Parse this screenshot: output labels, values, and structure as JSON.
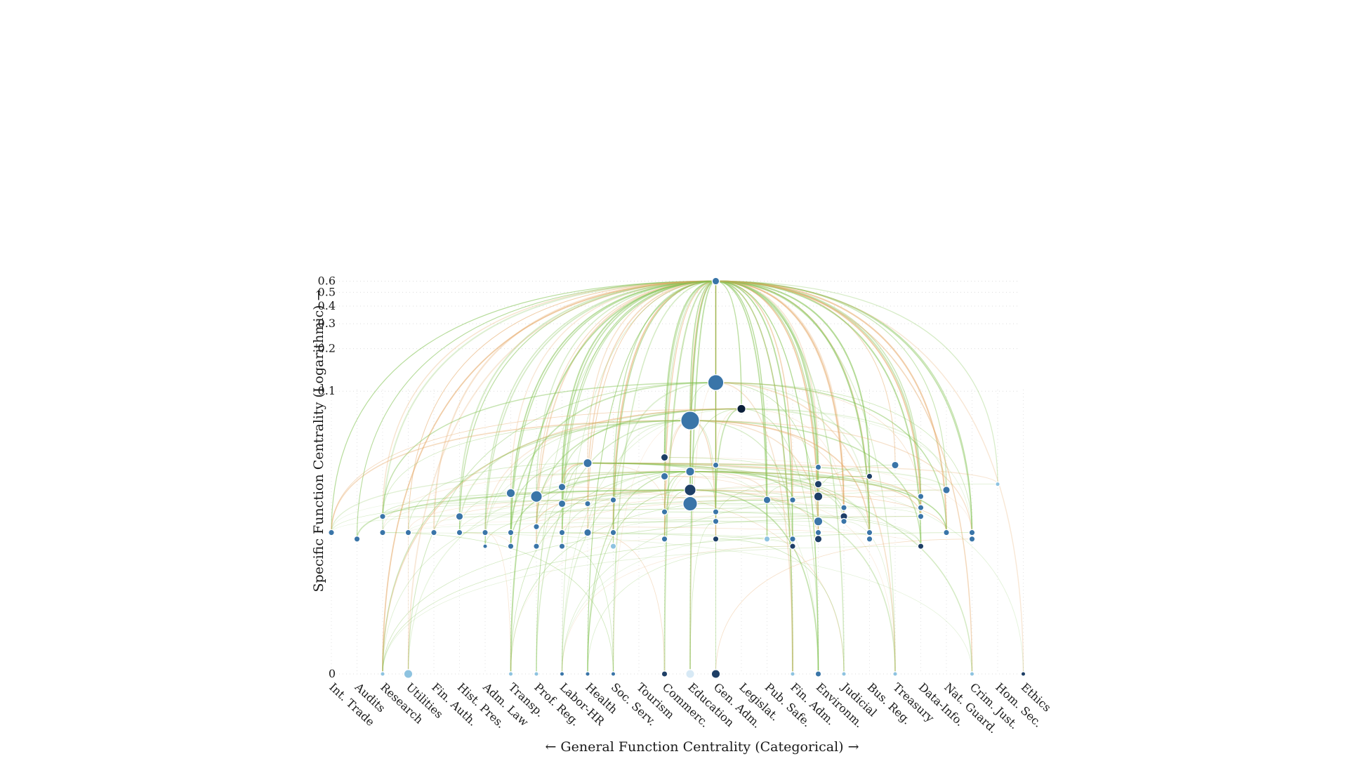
{
  "chart_data": {
    "type": "network-scatter",
    "xlabel": "← General Function Centrality (Categorical) →",
    "ylabel": "Specific Function Centrality (Logarithmic) →",
    "yscale": "log",
    "ylim": [
      0,
      0.6
    ],
    "yticks": [
      0,
      0.1,
      0.2,
      0.3,
      0.4,
      0.5,
      0.6
    ],
    "grid": "dotted",
    "categories": [
      "Int. Trade",
      "Audits",
      "Research",
      "Utilities",
      "Fin. Auth.",
      "Hist. Pres.",
      "Adm. Law",
      "Transp.",
      "Prof. Reg.",
      "Labor-HR",
      "Health",
      "Soc. Serv.",
      "Tourism",
      "Commerc.",
      "Education",
      "Gen. Adm.",
      "Legislat.",
      "Pub. Safe.",
      "Fin. Adm.",
      "Environm.",
      "Judicial",
      "Bus. Reg.",
      "Treasury",
      "Data-Info.",
      "Nat. Guard.",
      "Crim. Just.",
      "Hom. Sec.",
      "Ethics"
    ],
    "hub_category": "Gen. Adm.",
    "hub_value": 0.6,
    "nodes": [
      {
        "cat": "Gen. Adm.",
        "y": 0.6,
        "size": 4,
        "color": "#3a75a8"
      },
      {
        "cat": "Gen. Adm.",
        "y": 0.115,
        "size": 10,
        "color": "#3a75a8"
      },
      {
        "cat": "Legislat.",
        "y": 0.075,
        "size": 5,
        "color": "#0b1f3a"
      },
      {
        "cat": "Education",
        "y": 0.062,
        "size": 12,
        "color": "#3a75a8"
      },
      {
        "cat": "Commerc.",
        "y": 0.034,
        "size": 4,
        "color": "#1e3f66"
      },
      {
        "cat": "Health",
        "y": 0.031,
        "size": 5,
        "color": "#3a75a8"
      },
      {
        "cat": "Treasury",
        "y": 0.03,
        "size": 4,
        "color": "#3a75a8"
      },
      {
        "cat": "Gen. Adm.",
        "y": 0.03,
        "size": 3,
        "color": "#3a75a8"
      },
      {
        "cat": "Environm.",
        "y": 0.029,
        "size": 3,
        "color": "#3a75a8"
      },
      {
        "cat": "Education",
        "y": 0.027,
        "size": 5,
        "color": "#3a75a8"
      },
      {
        "cat": "Bus. Reg.",
        "y": 0.025,
        "size": 3,
        "color": "#1e3f66"
      },
      {
        "cat": "Commerc.",
        "y": 0.025,
        "size": 4,
        "color": "#3a75a8"
      },
      {
        "cat": "Hom. Sec.",
        "y": 0.022,
        "size": 2,
        "color": "#8ec3e0"
      },
      {
        "cat": "Environm.",
        "y": 0.022,
        "size": 4,
        "color": "#1e3f66"
      },
      {
        "cat": "Labor-HR",
        "y": 0.021,
        "size": 4,
        "color": "#3a75a8"
      },
      {
        "cat": "Education",
        "y": 0.02,
        "size": 7,
        "color": "#1e3f66"
      },
      {
        "cat": "Nat. Guard.",
        "y": 0.02,
        "size": 4,
        "color": "#3a75a8"
      },
      {
        "cat": "Transp.",
        "y": 0.019,
        "size": 5,
        "color": "#3a75a8"
      },
      {
        "cat": "Environm.",
        "y": 0.018,
        "size": 5,
        "color": "#1e3f66"
      },
      {
        "cat": "Prof. Reg.",
        "y": 0.018,
        "size": 7,
        "color": "#3a75a8"
      },
      {
        "cat": "Data-Info.",
        "y": 0.018,
        "size": 3,
        "color": "#3a75a8"
      },
      {
        "cat": "Education",
        "y": 0.016,
        "size": 9,
        "color": "#3a75a8"
      },
      {
        "cat": "Pub. Safe.",
        "y": 0.017,
        "size": 4,
        "color": "#3a75a8"
      },
      {
        "cat": "Fin. Adm.",
        "y": 0.017,
        "size": 3,
        "color": "#3a75a8"
      },
      {
        "cat": "Labor-HR",
        "y": 0.016,
        "size": 4,
        "color": "#3a75a8"
      },
      {
        "cat": "Health",
        "y": 0.016,
        "size": 3,
        "color": "#3a75a8"
      },
      {
        "cat": "Soc. Serv.",
        "y": 0.017,
        "size": 3,
        "color": "#3a75a8"
      },
      {
        "cat": "Data-Info.",
        "y": 0.015,
        "size": 3,
        "color": "#3a75a8"
      },
      {
        "cat": "Judicial",
        "y": 0.015,
        "size": 3,
        "color": "#3a75a8"
      },
      {
        "cat": "Commerc.",
        "y": 0.014,
        "size": 3,
        "color": "#3a75a8"
      },
      {
        "cat": "Gen. Adm.",
        "y": 0.014,
        "size": 3,
        "color": "#3a75a8"
      },
      {
        "cat": "Research",
        "y": 0.013,
        "size": 3,
        "color": "#3a75a8"
      },
      {
        "cat": "Hist. Pres.",
        "y": 0.013,
        "size": 4,
        "color": "#3a75a8"
      },
      {
        "cat": "Data-Info.",
        "y": 0.013,
        "size": 3,
        "color": "#3a75a8"
      },
      {
        "cat": "Judicial",
        "y": 0.013,
        "size": 4,
        "color": "#1e3f66"
      },
      {
        "cat": "Gen. Adm.",
        "y": 0.012,
        "size": 3,
        "color": "#3a75a8"
      },
      {
        "cat": "Environm.",
        "y": 0.012,
        "size": 5,
        "color": "#3a75a8"
      },
      {
        "cat": "Judicial",
        "y": 0.012,
        "size": 3,
        "color": "#3a75a8"
      },
      {
        "cat": "Int. Trade",
        "y": 0.01,
        "size": 3,
        "color": "#3a75a8"
      },
      {
        "cat": "Audits",
        "y": 0.009,
        "size": 3,
        "color": "#3a75a8"
      },
      {
        "cat": "Research",
        "y": 0.01,
        "size": 3,
        "color": "#3a75a8"
      },
      {
        "cat": "Utilities",
        "y": 0.01,
        "size": 3,
        "color": "#3a75a8"
      },
      {
        "cat": "Fin. Auth.",
        "y": 0.01,
        "size": 3,
        "color": "#3a75a8"
      },
      {
        "cat": "Hist. Pres.",
        "y": 0.01,
        "size": 3,
        "color": "#3a75a8"
      },
      {
        "cat": "Adm. Law",
        "y": 0.01,
        "size": 3,
        "color": "#3a75a8"
      },
      {
        "cat": "Transp.",
        "y": 0.01,
        "size": 3,
        "color": "#3a75a8"
      },
      {
        "cat": "Prof. Reg.",
        "y": 0.011,
        "size": 3,
        "color": "#3a75a8"
      },
      {
        "cat": "Labor-HR",
        "y": 0.01,
        "size": 3,
        "color": "#3a75a8"
      },
      {
        "cat": "Health",
        "y": 0.01,
        "size": 4,
        "color": "#3a75a8"
      },
      {
        "cat": "Soc. Serv.",
        "y": 0.01,
        "size": 3,
        "color": "#3a75a8"
      },
      {
        "cat": "Commerc.",
        "y": 0.009,
        "size": 3,
        "color": "#3a75a8"
      },
      {
        "cat": "Pub. Safe.",
        "y": 0.009,
        "size": 3,
        "color": "#8ec3e0"
      },
      {
        "cat": "Fin. Adm.",
        "y": 0.009,
        "size": 3,
        "color": "#3a75a8"
      },
      {
        "cat": "Environm.",
        "y": 0.01,
        "size": 3,
        "color": "#3a75a8"
      },
      {
        "cat": "Environm.",
        "y": 0.009,
        "size": 4,
        "color": "#1e3f66"
      },
      {
        "cat": "Bus. Reg.",
        "y": 0.01,
        "size": 3,
        "color": "#3a75a8"
      },
      {
        "cat": "Bus. Reg.",
        "y": 0.009,
        "size": 3,
        "color": "#3a75a8"
      },
      {
        "cat": "Nat. Guard.",
        "y": 0.01,
        "size": 3,
        "color": "#3a75a8"
      },
      {
        "cat": "Crim. Just.",
        "y": 0.01,
        "size": 3,
        "color": "#3a75a8"
      },
      {
        "cat": "Crim. Just.",
        "y": 0.009,
        "size": 3,
        "color": "#3a75a8"
      },
      {
        "cat": "Gen. Adm.",
        "y": 0.009,
        "size": 3,
        "color": "#1e3f66"
      },
      {
        "cat": "Adm. Law",
        "y": 0.008,
        "size": 2,
        "color": "#3a75a8"
      },
      {
        "cat": "Transp.",
        "y": 0.008,
        "size": 3,
        "color": "#3a75a8"
      },
      {
        "cat": "Prof. Reg.",
        "y": 0.008,
        "size": 3,
        "color": "#3a75a8"
      },
      {
        "cat": "Labor-HR",
        "y": 0.008,
        "size": 3,
        "color": "#3a75a8"
      },
      {
        "cat": "Soc. Serv.",
        "y": 0.008,
        "size": 3,
        "color": "#8ec3e0"
      },
      {
        "cat": "Fin. Adm.",
        "y": 0.008,
        "size": 3,
        "color": "#1e3f66"
      },
      {
        "cat": "Data-Info.",
        "y": 0.008,
        "size": 3,
        "color": "#1e3f66"
      }
    ],
    "baseline_nodes": [
      {
        "cat": "Research",
        "size": 2,
        "color": "#8ec3e0"
      },
      {
        "cat": "Utilities",
        "size": 5,
        "color": "#8ec3e0"
      },
      {
        "cat": "Transp.",
        "size": 2,
        "color": "#8ec3e0"
      },
      {
        "cat": "Prof. Reg.",
        "size": 2,
        "color": "#8ec3e0"
      },
      {
        "cat": "Labor-HR",
        "size": 2,
        "color": "#3a75a8"
      },
      {
        "cat": "Health",
        "size": 2,
        "color": "#3a75a8"
      },
      {
        "cat": "Soc. Serv.",
        "size": 2,
        "color": "#3a75a8"
      },
      {
        "cat": "Commerc.",
        "size": 3,
        "color": "#1e3f66"
      },
      {
        "cat": "Education",
        "size": 5,
        "color": "#d7e9f5"
      },
      {
        "cat": "Gen. Adm.",
        "size": 5,
        "color": "#1e3f66"
      },
      {
        "cat": "Fin. Adm.",
        "size": 2,
        "color": "#8ec3e0"
      },
      {
        "cat": "Environm.",
        "size": 3,
        "color": "#3a75a8"
      },
      {
        "cat": "Judicial",
        "size": 2,
        "color": "#8ec3e0"
      },
      {
        "cat": "Treasury",
        "size": 2,
        "color": "#8ec3e0"
      },
      {
        "cat": "Crim. Just.",
        "size": 2,
        "color": "#8ec3e0"
      },
      {
        "cat": "Ethics",
        "size": 2,
        "color": "#1e3f66"
      }
    ],
    "edge_colors": {
      "green": "#7cc04a",
      "orange": "#e5a765"
    }
  }
}
